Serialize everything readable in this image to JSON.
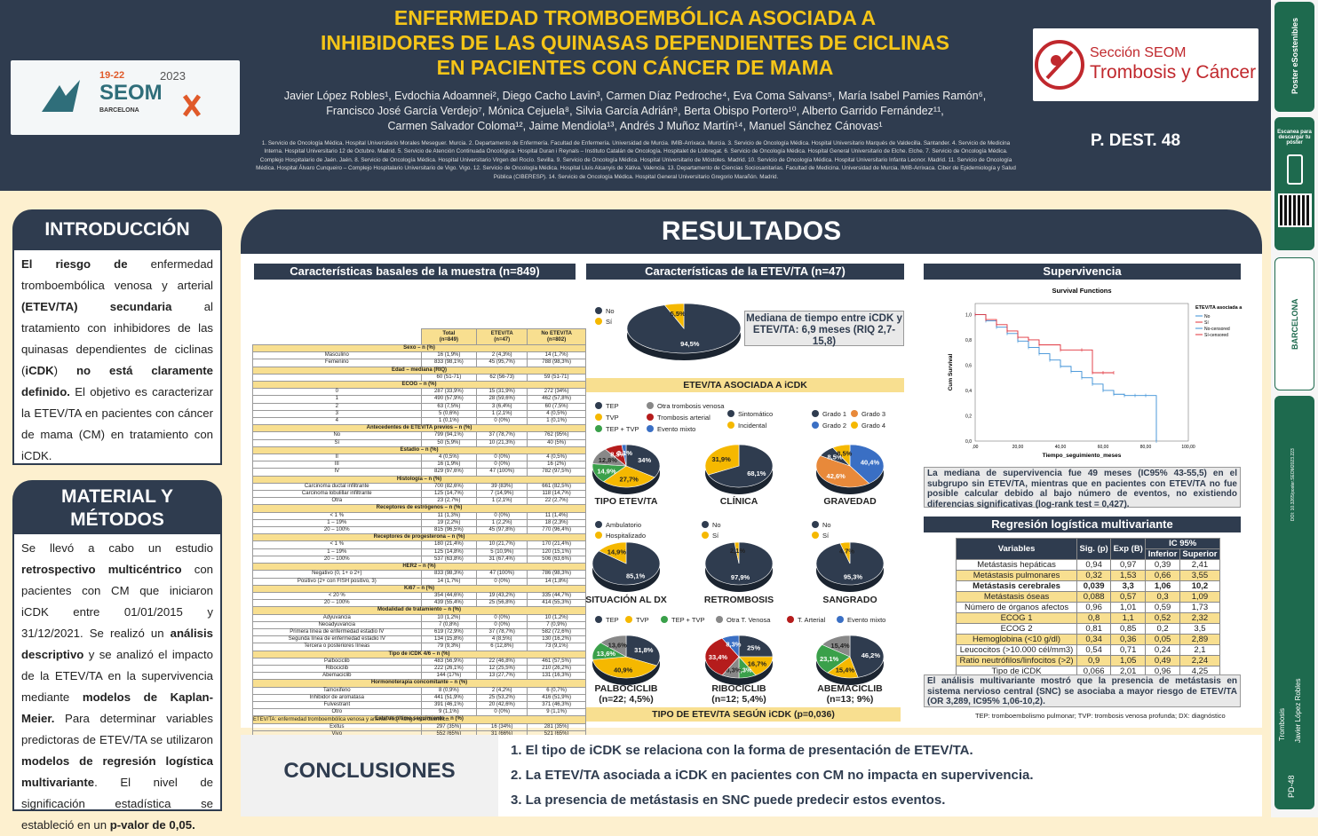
{
  "header": {
    "title": [
      "ENFERMEDAD TROMBOEMBÓLICA ASOCIADA A",
      "INHIBIDORES DE LAS QUINASAS DEPENDIENTES DE CICLINAS",
      "EN PACIENTES CON CÁNCER DE MAMA"
    ],
    "authors": [
      "Javier López Robles¹, Evdochia Adoamnei², Diego Cacho Lavin³, Carmen Díaz Pedroche⁴, Eva Coma Salvans⁵, María Isabel Pamies Ramón⁶,",
      "Francisco José García Verdejo⁷, Mónica Cejuela⁸, Silvia García Adrián⁹, Berta Obispo Portero¹⁰, Alberto Garrido Fernández¹¹,",
      "Carmen Salvador Coloma¹², Jaime Mendiola¹³, Andrés J Muñoz Martín¹⁴, Manuel Sánchez Cánovas¹"
    ],
    "affiliations": "1. Servicio de Oncología Médica. Hospital Universitario Morales Meseguer. Murcia. 2. Departamento de Enfermería. Facultad de Enfermería. Universidad de Murcia. IMIB-Arrixaca. Murcia. 3. Servicio de Oncología Médica. Hospital Universitario Marqués de Valdecilla. Santander. 4. Servicio de Medicina Interna. Hospital Universitario 12 de Octubre. Madrid. 5. Servicio de Atención Continuada Oncológica. Hospital Duran i Reynals – Instituto Catalán de Oncología. Hospitalet de Llobregat. 6. Servicio de Oncología Médica. Hospital General Universitario de Elche. Elche. 7. Servicio de Oncología Médica. Complejo Hospitalario de Jaén. Jaén. 8. Servicio de Oncología Médica. Hospital Universitario Virgen del Rocío. Sevilla. 9. Servicio de Oncología Médica. Hospital Universitario de Móstoles. Madrid. 10. Servicio de Oncología Médica. Hospital Universitario Infanta Leonor. Madrid. 11. Servicio de Oncología Médica. Hospital Álvaro Cunqueiro – Complejo Hospitalario Universitario de Vigo. Vigo. 12. Servicio de Oncología Médica. Hospital Lluis Alcanyis de Xàtiva. Valencia. 13. Departamento de Ciencias Sociosanitarias. Facultad de Medicina. Universidad de Murcia. IMIB-Arrixaca. Ciber de Epidemiología y Salud Pública (CIBERESP). 14. Servicio de Oncología Médica. Hospital General Universitario Gregorio Marañón. Madrid.",
    "poster_id": "P. DEST. 48",
    "logo_seom": {
      "dates": "19-22",
      "year": "2023",
      "name": "SEOM",
      "city": "BARCELONA"
    },
    "logo_tc": {
      "section": "Sección SEOM",
      "name": "Trombosis y Cáncer"
    }
  },
  "sidebar": {
    "brand": "Poster eSostenibles",
    "scan": "Escanea para descargar tu póster",
    "city": "BARCELONA",
    "doi": "DOI: 10.3265/poster.SEOM2023.223",
    "area": "Trombosis",
    "author": "Javier López Robles",
    "code": "PD-48"
  },
  "intro": {
    "title": "INTRODUCCIÓN",
    "html": "<b>El riesgo de</b> enfermedad tromboembólica venosa y arterial <b>(ETEV/TA) secundaria</b> al tratamiento con inhibidores de las quinasas dependientes de ciclinas (<b>iCDK</b>) <b>no está claramente definido.</b> El objetivo es caracterizar la ETEV/TA en pacientes con cáncer de mama (CM) en tratamiento con iCDK."
  },
  "methods": {
    "title": "MATERIAL Y MÉTODOS",
    "html": "Se llevó a cabo un estudio <b>retrospectivo multicéntrico</b> con pacientes con CM que iniciaron iCDK entre 01/01/2015 y 31/12/2021. Se realizó un <b>análisis descriptivo</b> y se analizó el impacto de la ETEV/TA en la supervivencia mediante <b>modelos de Kaplan-Meier.</b> Para determinar variables predictoras de ETEV/TA se utilizaron <b>modelos de regresión logística multivariante</b>. El nivel de significación estadística se estableció en un <b>p-valor de 0,05.</b>"
  },
  "results": {
    "title": "RESULTADOS",
    "baseline_title": "Características basales de la muestra (n=849)",
    "baseline_cols": [
      "Total\n(n=849)",
      "ETEV/TA\n(n=47)",
      "No ETEV/TA\n(n=802)"
    ],
    "baseline_rows": [
      [
        "h",
        "Sexo – n (%)"
      ],
      [
        "r",
        "Masculino",
        "16 (1,9%)",
        "2 (4,3%)",
        "14 (1,7%)"
      ],
      [
        "r",
        "Femenino",
        "833 (98,1%)",
        "45 (95,7%)",
        "788 (98,3%)"
      ],
      [
        "h",
        "Edad – mediana (RIQ)"
      ],
      [
        "r",
        "",
        "60 (51-71)",
        "62 (56-73)",
        "59 (51-71)"
      ],
      [
        "h",
        "ECOG – n (%)"
      ],
      [
        "r",
        "0",
        "287 (33,9%)",
        "15 (31,9%)",
        "272 (34%)"
      ],
      [
        "r",
        "1",
        "490 (57,9%)",
        "28 (59,6%)",
        "462 (57,8%)"
      ],
      [
        "r",
        "2",
        "63 (7,5%)",
        "3 (6,4%)",
        "60 (7,5%)"
      ],
      [
        "r",
        "3",
        "5 (0,6%)",
        "1 (2,1%)",
        "4 (0,5%)"
      ],
      [
        "r",
        "4",
        "1 (0,1%)",
        "0 (0%)",
        "1 (0,1%)"
      ],
      [
        "h",
        "Antecedentes de ETEV/TA previos – n (%)"
      ],
      [
        "r",
        "No",
        "799 (94,1%)",
        "37 (78,7%)",
        "762 (95%)"
      ],
      [
        "r",
        "Sí",
        "50 (5,9%)",
        "10 (21,3%)",
        "40 (5%)"
      ],
      [
        "h",
        "Estadio – n (%)"
      ],
      [
        "r",
        "II",
        "4 (0,5%)",
        "0 (0%)",
        "4 (0,5%)"
      ],
      [
        "r",
        "III",
        "16 (1,9%)",
        "0 (0%)",
        "16 (2%)"
      ],
      [
        "r",
        "IV",
        "829 (97,6%)",
        "47 (100%)",
        "782 (97,5%)"
      ],
      [
        "h",
        "Histología – n (%)"
      ],
      [
        "r",
        "Carcinoma ductal infiltrante",
        "700 (82,6%)",
        "39 (83%)",
        "661 (82,5%)"
      ],
      [
        "r",
        "Carcinoma lobulillar infiltrante",
        "125 (14,7%)",
        "7 (14,9%)",
        "118 (14,7%)"
      ],
      [
        "r",
        "Otra",
        "23 (2,7%)",
        "1 (2,1%)",
        "22 (2,7%)"
      ],
      [
        "h",
        "Receptores de estrógenos – n (%)"
      ],
      [
        "r",
        "< 1 %",
        "11 (1,3%)",
        "0 (0%)",
        "11 (1,4%)"
      ],
      [
        "r",
        "1 – 19%",
        "19 (2,2%)",
        "1 (2,2%)",
        "18 (2,3%)"
      ],
      [
        "r",
        "20 – 100%",
        "815 (96,5%)",
        "45 (97,8%)",
        "770 (96,4%)"
      ],
      [
        "h",
        "Receptores de progesterona – n (%)"
      ],
      [
        "r",
        "< 1 %",
        "180 (21,4%)",
        "10 (21,7%)",
        "170 (21,4%)"
      ],
      [
        "r",
        "1 – 19%",
        "125 (14,8%)",
        "5 (10,9%)",
        "120 (15,1%)"
      ],
      [
        "r",
        "20 – 100%",
        "537 (63,8%)",
        "31 (67,4%)",
        "506 (63,6%)"
      ],
      [
        "h",
        "HER2 – n (%)"
      ],
      [
        "r",
        "Negativo (0, 1+ o 2+)",
        "833 (98,3%)",
        "47 (100%)",
        "786 (98,3%)"
      ],
      [
        "r",
        "Positivo (2+ con FISH positivo, 3)",
        "14 (1,7%)",
        "0 (0%)",
        "14 (1,8%)"
      ],
      [
        "h",
        "Ki67 – n (%)"
      ],
      [
        "r",
        "< 20 %",
        "354 (44,6%)",
        "19 (43,2%)",
        "335 (44,7%)"
      ],
      [
        "r",
        "20 – 100%",
        "439 (55,4%)",
        "25 (56,8%)",
        "414 (55,3%)"
      ],
      [
        "h",
        "Modalidad de tratamiento – n (%)"
      ],
      [
        "r",
        "Adyuvancia",
        "10 (1,2%)",
        "0 (0%)",
        "10 (1,2%)"
      ],
      [
        "r",
        "Neoadyuvancia",
        "7 (0,8%)",
        "0 (0%)",
        "7 (0,9%)"
      ],
      [
        "r",
        "Primera línea de enfermedad estadio IV",
        "619 (72,9%)",
        "37 (78,7%)",
        "582 (72,6%)"
      ],
      [
        "r",
        "Segunda línea de enfermedad estadio IV",
        "134 (15,8%)",
        "4 (8,5%)",
        "130 (16,2%)"
      ],
      [
        "r",
        "Tercera o posteriores líneas",
        "79 (9,3%)",
        "6 (12,8%)",
        "73 (9,1%)"
      ],
      [
        "h",
        "Tipo de iCDK 4/6 – n (%)"
      ],
      [
        "r",
        "Palbociclib",
        "483 (56,9%)",
        "22 (46,8%)",
        "461 (57,5%)"
      ],
      [
        "r",
        "Ribociclib",
        "222 (26,1%)",
        "12 (25,5%)",
        "210 (26,2%)"
      ],
      [
        "r",
        "Abemaciclib",
        "144 (17%)",
        "13 (27,7%)",
        "131 (16,3%)"
      ],
      [
        "h",
        "Hormonoterapia concomitante – n (%)"
      ],
      [
        "r",
        "Tamoxifeno",
        "8 (0,9%)",
        "2 (4,2%)",
        "6 (0,7%)"
      ],
      [
        "r",
        "Inhibidor de aromatasa",
        "441 (51,9%)",
        "25 (53,2%)",
        "416 (51,9%)"
      ],
      [
        "r",
        "Fulvestrant",
        "391 (46,1%)",
        "20 (42,6%)",
        "371 (46,3%)"
      ],
      [
        "r",
        "Otro",
        "9 (1,1%)",
        "0 (0%)",
        "9 (1,1%)"
      ],
      [
        "h",
        "Estatus último seguimiento – n (%)"
      ],
      [
        "r",
        "Exitus",
        "297 (35%)",
        "16 (34%)",
        "281 (35%)"
      ],
      [
        "r",
        "Vivo",
        "552 (65%)",
        "31 (66%)",
        "521 (65%)"
      ]
    ],
    "baseline_note": "ETEV/TA: enfermedad tromboembólica venosa y arterial. RIQ: rango intercuartílico.",
    "char_title": "Características de la ETEV/TA (n=47)",
    "median_box": "Mediana de tiempo entre iCDK y ETEV/TA: 6,9 meses (RIQ 2,7-15,8)",
    "assoc_label": "ETEV/TA ASOCIADA A iCDK",
    "surv_title": "Supervivencia",
    "surv_chart_title": "Survival Functions",
    "surv_ylabel": "Cum Survival",
    "surv_xlabel": "Tiempo_seguimiento_meses",
    "surv_legend_title": "ETEV/TA asociada a cáncer",
    "surv_legend": [
      "No",
      "Sí",
      "No-censored",
      "Sí-censored"
    ],
    "surv_text": "La mediana de supervivencia fue 49 meses (IC95% 43-55,5) en el subgrupo sin ETEV/TA, mientras que en pacientes con ETEV/TA no fue posible calcular debido al bajo número de eventos, no existiendo diferencias significativas (log-rank test = 0,427).",
    "reg_title": "Regresión logística multivariante",
    "reg_head": [
      "Variables",
      "Sig. (p)",
      "Exp (B)",
      "IC 95%",
      "Inferior",
      "Superior"
    ],
    "reg_rows": [
      [
        "Metástasis hepáticas",
        "0,94",
        "0,97",
        "0,39",
        "2,41"
      ],
      [
        "Metástasis pulmonares",
        "0,32",
        "1,53",
        "0,66",
        "3,55"
      ],
      [
        "Metástasis cerebrales",
        "0,039",
        "3,3",
        "1,06",
        "10,2"
      ],
      [
        "Metástasis óseas",
        "0,088",
        "0,57",
        "0,3",
        "1,09"
      ],
      [
        "Número de órganos afectos",
        "0,96",
        "1,01",
        "0,59",
        "1,73"
      ],
      [
        "ECOG 1",
        "0,8",
        "1,1",
        "0,52",
        "2,32"
      ],
      [
        "ECOG 2",
        "0,81",
        "0,85",
        "0,2",
        "3,5"
      ],
      [
        "Hemoglobina (<10 g/dl)",
        "0,34",
        "0,36",
        "0,05",
        "2,89"
      ],
      [
        "Leucocitos (>10.000 cél/mm3)",
        "0,54",
        "0,71",
        "0,24",
        "2,1"
      ],
      [
        "Ratio neutrófilos/linfocitos (>2)",
        "0,9",
        "1,05",
        "0,49",
        "2,24"
      ],
      [
        "Tipo de iCDK",
        "0,066",
        "2,01",
        "0,96",
        "4,25"
      ],
      [
        "Modalidad de tratamiento",
        "0,17",
        "0,46",
        "0,15",
        "1,4"
      ]
    ],
    "reg_text": "El análisis multivariante mostró que la presencia de metástasis en sistema nervioso central (SNC) se asociaba a mayor riesgo de ETEV/TA (OR 3,289, IC95% 1,06-10,2).",
    "footnote": "TEP: tromboembolismo pulmonar; TVP: trombosis venosa profunda; DX: diagnóstico",
    "type_by_icdk": "TIPO DE ETEV/TA SEGÚN iCDK (p=0,036)"
  },
  "chart_data": [
    {
      "type": "pie",
      "name": "assoc",
      "categories": [
        "No",
        "Sí"
      ],
      "values": [
        94.5,
        5.5
      ],
      "colors": [
        "#2f3c4f",
        "#f5b800"
      ]
    },
    {
      "type": "pie",
      "name": "tipo",
      "title": "TIPO ETEV/TA",
      "categories": [
        "TEP",
        "Otra trombosis venosa",
        "TVP",
        "Trombosis arterial",
        "TEP + TVP",
        "Evento mixto"
      ],
      "values": [
        34,
        27.7,
        14.9,
        12.8,
        8.5,
        2.1
      ],
      "colors": [
        "#2f3c4f",
        "#f5b800",
        "#3aa04a",
        "#888888",
        "#b51c1c",
        "#3a6fc4"
      ]
    },
    {
      "type": "pie",
      "name": "clinica",
      "title": "CLÍNICA",
      "categories": [
        "Sintomático",
        "Incidental"
      ],
      "values": [
        68.1,
        31.9
      ],
      "colors": [
        "#2f3c4f",
        "#f5b800"
      ]
    },
    {
      "type": "pie",
      "name": "gravedad",
      "title": "GRAVEDAD",
      "categories": [
        "Grado 1",
        "Grado 2",
        "Grado 3",
        "Grado 4"
      ],
      "values": [
        40.4,
        42.6,
        8.5,
        8.5
      ],
      "colors": [
        "#3a6fc4",
        "#e8893a",
        "#2f3c4f",
        "#f5b800"
      ]
    },
    {
      "type": "pie",
      "name": "situacion",
      "title": "SITUACIÓN AL DX",
      "categories": [
        "Ambulatorio",
        "Hospitalizado"
      ],
      "values": [
        85.1,
        14.9
      ],
      "colors": [
        "#2f3c4f",
        "#f5b800"
      ]
    },
    {
      "type": "pie",
      "name": "retro",
      "title": "RETROMBOSIS",
      "categories": [
        "No",
        "Sí"
      ],
      "values": [
        97.9,
        2.1
      ],
      "colors": [
        "#2f3c4f",
        "#f5b800"
      ]
    },
    {
      "type": "pie",
      "name": "sangrado",
      "title": "SANGRADO",
      "categories": [
        "No",
        "Sí"
      ],
      "values": [
        95.3,
        4.7
      ],
      "colors": [
        "#2f3c4f",
        "#f5b800"
      ]
    },
    {
      "type": "pie",
      "name": "palbo",
      "title": "PALBOCICLIB (n=22; 4,5%)",
      "categories": [
        "TEP",
        "TVP",
        "TEP + TVP",
        "Otra T. Venosa"
      ],
      "values": [
        31.8,
        40.9,
        13.6,
        13.6
      ],
      "colors": [
        "#2f3c4f",
        "#f5b800",
        "#3aa04a",
        "#888888"
      ]
    },
    {
      "type": "pie",
      "name": "ribo",
      "title": "RIBOCICLIB (n=12; 5,4%)",
      "categories": [
        "TEP",
        "TVP",
        "TEP + TVP",
        "Otra T. Venosa",
        "T. Arterial",
        "Evento mixto"
      ],
      "values": [
        25,
        16.7,
        8.3,
        8.3,
        33.4,
        8.3
      ],
      "colors": [
        "#2f3c4f",
        "#f5b800",
        "#3aa04a",
        "#888888",
        "#b51c1c",
        "#3a6fc4"
      ]
    },
    {
      "type": "pie",
      "name": "abema",
      "title": "ABEMACICLIB (n=13; 9%)",
      "categories": [
        "TEP",
        "TVP",
        "TEP + TVP",
        "Otra T. Venosa"
      ],
      "values": [
        46.2,
        15.4,
        23.1,
        15.4
      ],
      "colors": [
        "#2f3c4f",
        "#f5b800",
        "#3aa04a",
        "#888888"
      ]
    },
    {
      "type": "line",
      "name": "survival",
      "title": "Survival Functions",
      "xlabel": "Tiempo_seguimiento_meses",
      "ylabel": "Cum Survival",
      "xlim": [
        0,
        100
      ],
      "ylim": [
        0,
        1
      ],
      "xticks": [
        ",00",
        "20,00",
        "40,00",
        "60,00",
        "80,00",
        "100,00"
      ],
      "yticks": [
        "0,0",
        "0,2",
        "0,4",
        "0,6",
        "0,8",
        "1,0"
      ],
      "series": [
        {
          "name": "No",
          "color": "#3a8fd6",
          "x": [
            0,
            5,
            10,
            15,
            20,
            25,
            30,
            35,
            40,
            45,
            50,
            55,
            60,
            65,
            70,
            75,
            80,
            85
          ],
          "y": [
            1,
            0.95,
            0.9,
            0.85,
            0.79,
            0.74,
            0.69,
            0.64,
            0.59,
            0.55,
            0.5,
            0.45,
            0.4,
            0.37,
            0.36,
            0.36,
            0.36,
            0.0
          ]
        },
        {
          "name": "Sí",
          "color": "#e0303a",
          "x": [
            0,
            5,
            10,
            15,
            20,
            25,
            30,
            40,
            50,
            55,
            60,
            65
          ],
          "y": [
            1,
            0.96,
            0.92,
            0.87,
            0.82,
            0.8,
            0.76,
            0.72,
            0.72,
            0.54,
            0.54,
            0.54
          ]
        }
      ]
    }
  ],
  "conclusions": {
    "title": "CONCLUSIONES",
    "items": [
      "1. El tipo de iCDK se relaciona con la forma de presentación de ETEV/TA.",
      "2. La ETEV/TA asociada a iCDK en pacientes con CM no impacta en supervivencia.",
      "3. La presencia de metástasis en SNC puede predecir estos eventos."
    ]
  }
}
